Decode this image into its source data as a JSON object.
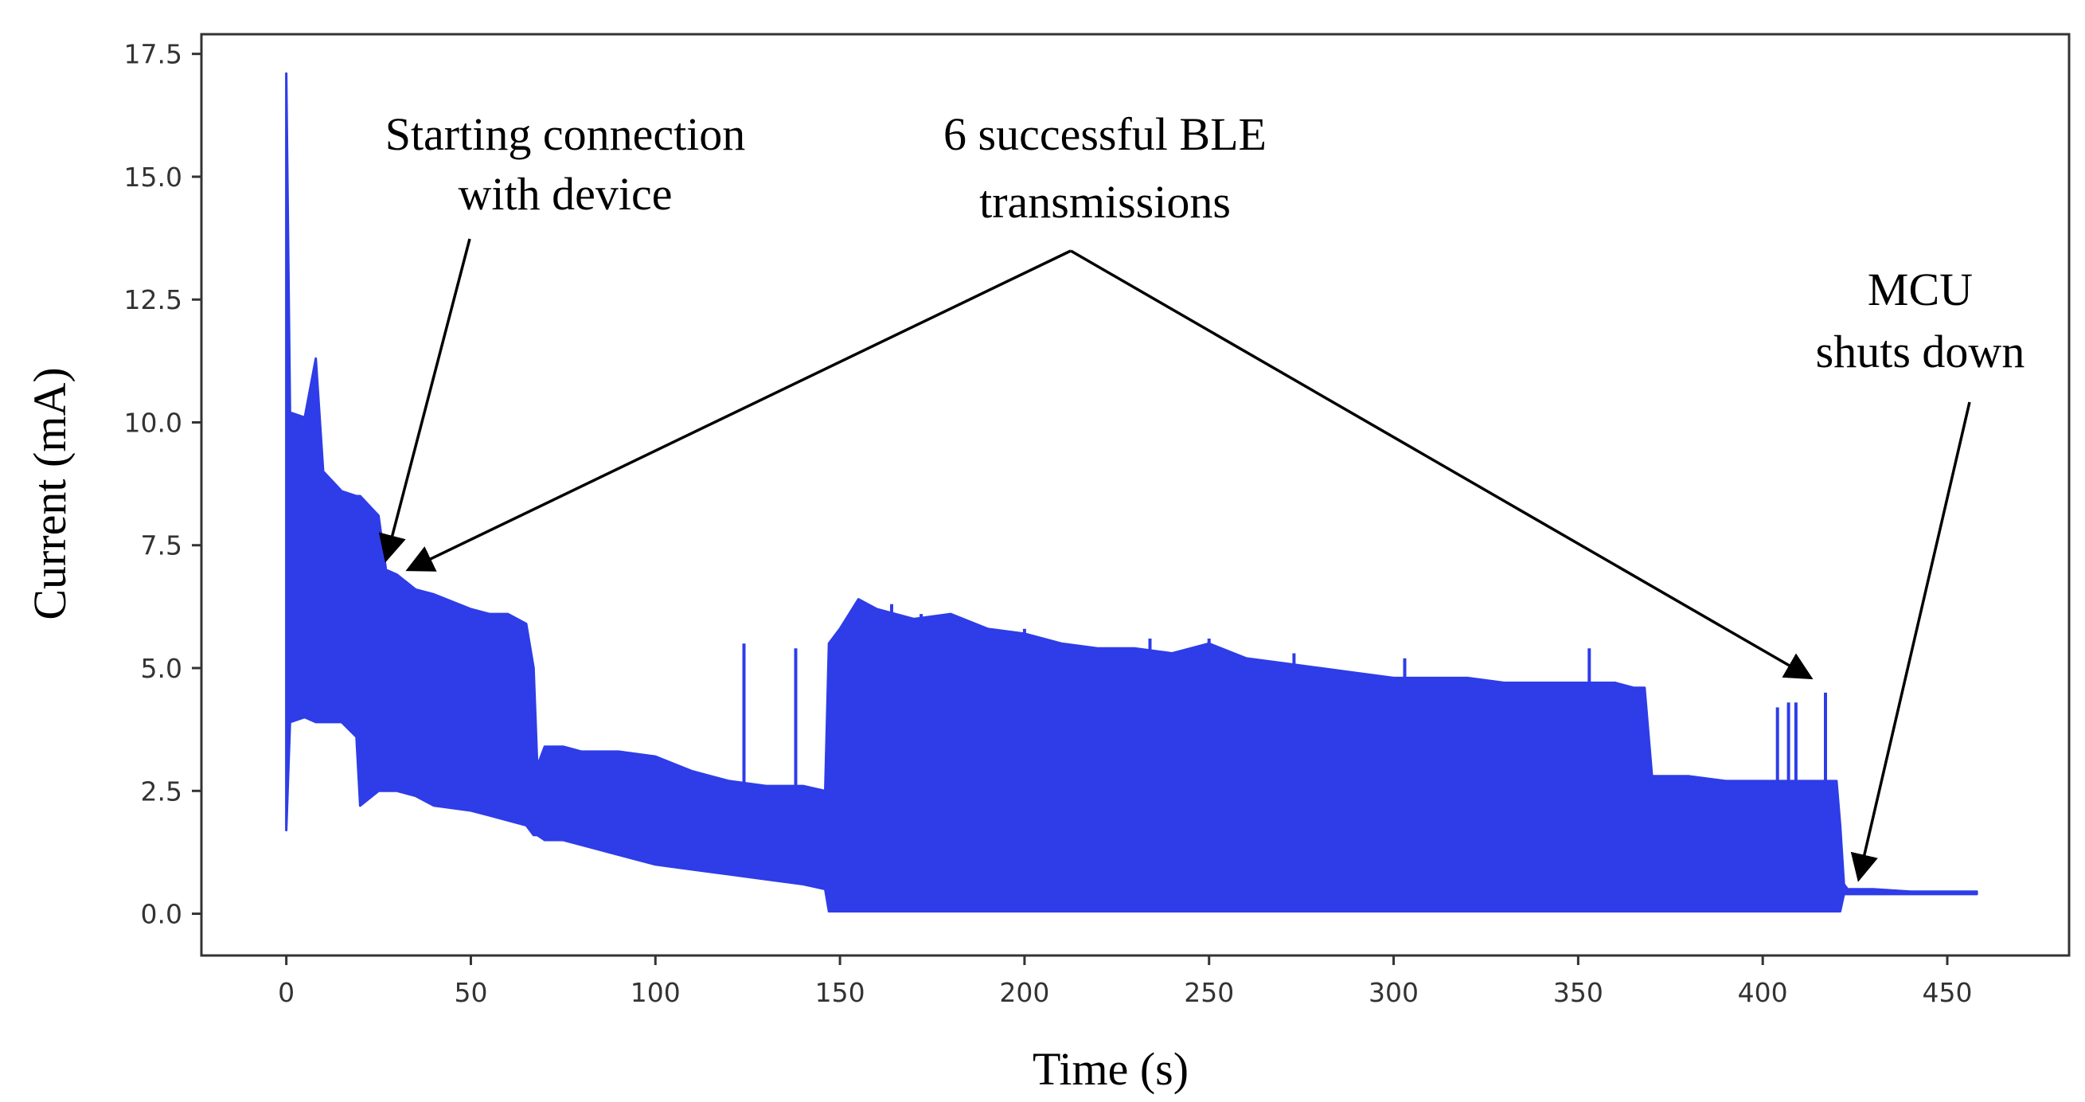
{
  "chart_data": {
    "type": "line",
    "title": "",
    "xlabel": "Time (s)",
    "ylabel": "Current (mA)",
    "xlim": [
      -23,
      483
    ],
    "ylim": [
      -0.85,
      17.9
    ],
    "xticks": [
      0,
      50,
      100,
      150,
      200,
      250,
      300,
      350,
      400,
      450
    ],
    "xtick_labels": [
      "0",
      "50",
      "100",
      "150",
      "200",
      "250",
      "300",
      "350",
      "400",
      "450"
    ],
    "yticks": [
      0.0,
      2.5,
      5.0,
      7.5,
      10.0,
      12.5,
      15.0,
      17.5
    ],
    "ytick_labels": [
      "0.0",
      "2.5",
      "5.0",
      "7.5",
      "10.0",
      "12.5",
      "15.0",
      "17.5"
    ],
    "grid": false,
    "legend": "none",
    "series_color": "#2e3de8",
    "series": [
      {
        "x": [
          0,
          1,
          5,
          8,
          10,
          15,
          19,
          20,
          25,
          27,
          30,
          35,
          40,
          50,
          55,
          60,
          65,
          67,
          68,
          70,
          75,
          80,
          90,
          100,
          110,
          120,
          130,
          140,
          146,
          147,
          150,
          155,
          160,
          170,
          180,
          190,
          200,
          210,
          220,
          230,
          240,
          250,
          260,
          270,
          280,
          290,
          300,
          310,
          320,
          330,
          340,
          350,
          360,
          365,
          368,
          370,
          380,
          390,
          400,
          410,
          415,
          420,
          421,
          422,
          423,
          424,
          430,
          440,
          450,
          458
        ],
        "max": [
          17.1,
          10.2,
          10.1,
          11.3,
          9.0,
          8.6,
          8.5,
          8.5,
          8.1,
          7.0,
          6.9,
          6.6,
          6.5,
          6.2,
          6.1,
          6.1,
          5.9,
          5.0,
          3.0,
          3.4,
          3.4,
          3.3,
          3.3,
          3.2,
          2.9,
          2.7,
          2.6,
          2.6,
          2.5,
          5.5,
          5.8,
          6.4,
          6.2,
          6.0,
          6.1,
          5.8,
          5.7,
          5.5,
          5.4,
          5.4,
          5.3,
          5.5,
          5.2,
          5.1,
          5.0,
          4.9,
          4.8,
          4.8,
          4.8,
          4.7,
          4.7,
          4.7,
          4.7,
          4.6,
          4.6,
          2.8,
          2.8,
          2.7,
          2.7,
          2.7,
          2.7,
          2.7,
          1.8,
          0.6,
          0.5,
          0.5,
          0.5,
          0.45,
          0.45,
          0.45
        ],
        "min": [
          1.7,
          3.9,
          4.0,
          3.9,
          3.9,
          3.9,
          3.6,
          2.2,
          2.5,
          2.5,
          2.5,
          2.4,
          2.2,
          2.1,
          2.0,
          1.9,
          1.8,
          1.6,
          1.6,
          1.5,
          1.5,
          1.4,
          1.2,
          1.0,
          0.9,
          0.8,
          0.7,
          0.6,
          0.5,
          0.05,
          0.05,
          0.05,
          0.05,
          0.05,
          0.05,
          0.05,
          0.05,
          0.05,
          0.05,
          0.05,
          0.05,
          0.05,
          0.05,
          0.05,
          0.05,
          0.05,
          0.05,
          0.05,
          0.05,
          0.05,
          0.05,
          0.05,
          0.05,
          0.05,
          0.05,
          0.05,
          0.05,
          0.05,
          0.05,
          0.05,
          0.05,
          0.05,
          0.05,
          0.4,
          0.4,
          0.4,
          0.4,
          0.4,
          0.4,
          0.4
        ]
      }
    ],
    "spikes": [
      {
        "x": 124,
        "y": 5.5
      },
      {
        "x": 138,
        "y": 5.4
      },
      {
        "x": 152,
        "y": 5.0
      },
      {
        "x": 164,
        "y": 6.3
      },
      {
        "x": 172,
        "y": 6.1
      },
      {
        "x": 182,
        "y": 6.0
      },
      {
        "x": 200,
        "y": 5.8
      },
      {
        "x": 234,
        "y": 5.6
      },
      {
        "x": 250,
        "y": 5.6
      },
      {
        "x": 273,
        "y": 5.3
      },
      {
        "x": 303,
        "y": 5.2
      },
      {
        "x": 353,
        "y": 5.4
      },
      {
        "x": 404,
        "y": 4.2
      },
      {
        "x": 407,
        "y": 4.3
      },
      {
        "x": 409,
        "y": 4.3
      },
      {
        "x": 417,
        "y": 4.5
      }
    ],
    "annotations": [
      {
        "lines": [
          "Starting connection",
          "with device"
        ]
      },
      {
        "lines": [
          "6 successful BLE",
          "transmissions"
        ]
      },
      {
        "lines": [
          "MCU",
          "shuts down"
        ]
      }
    ],
    "arrow_targets": [
      {
        "x": 27,
        "y": 7.2
      },
      {
        "x": 33,
        "y": 7.0
      },
      {
        "x": 413,
        "y": 4.8
      },
      {
        "x": 426,
        "y": 0.7
      }
    ]
  }
}
